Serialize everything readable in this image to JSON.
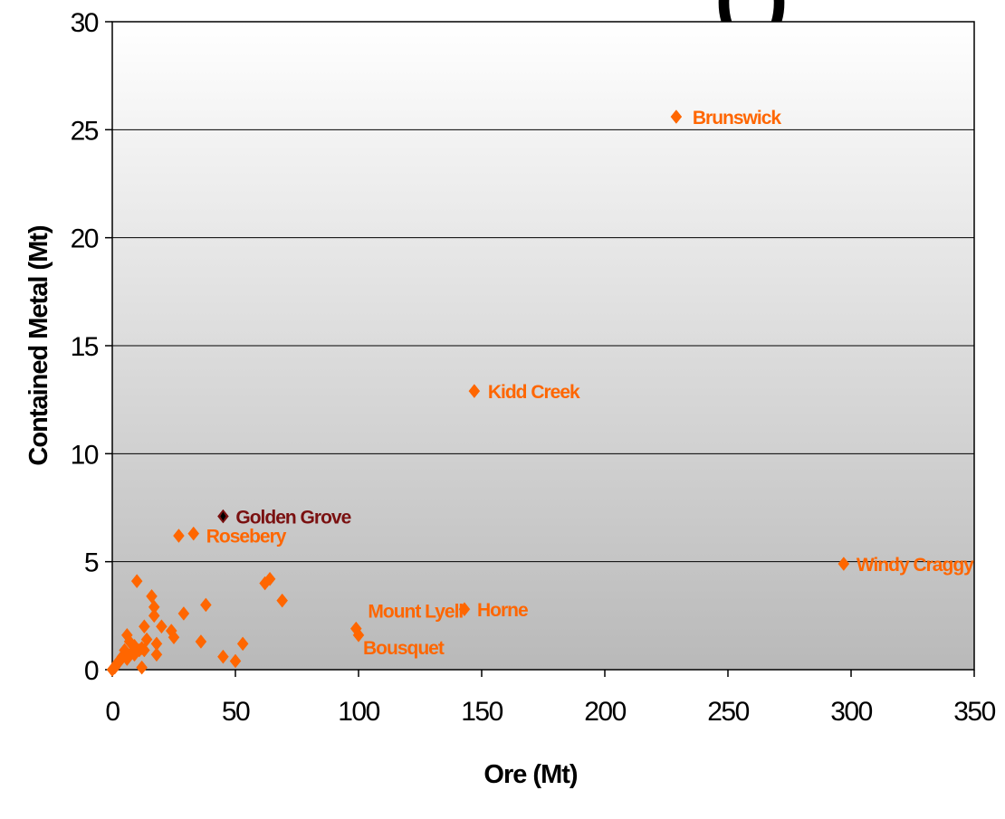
{
  "chart_data": {
    "type": "scatter",
    "title_fragment": "(    )",
    "xlabel": "Ore (Mt)",
    "ylabel": "Contained Metal (Mt)",
    "xlim": [
      0,
      350
    ],
    "ylim": [
      0,
      30
    ],
    "x_ticks": [
      0,
      50,
      100,
      150,
      200,
      250,
      300,
      350
    ],
    "y_ticks": [
      0,
      5,
      10,
      15,
      20,
      25,
      30
    ],
    "grid": "horizontal",
    "background": "vertical gradient, white at top to grey at bottom",
    "marker": "diamond",
    "colors": {
      "points": "#ff6600",
      "highlight": "#7a1010",
      "labels": "#ff6600"
    },
    "labeled_points": [
      {
        "name": "Brunswick",
        "x": 229,
        "y": 25.6
      },
      {
        "name": "Kidd Creek",
        "x": 147,
        "y": 12.9
      },
      {
        "name": "Golden Grove",
        "x": 45,
        "y": 7.1,
        "highlight": true
      },
      {
        "name": "Rosebery",
        "x": 33,
        "y": 6.3
      },
      {
        "name": "Windy Craggy",
        "x": 297,
        "y": 4.9
      },
      {
        "name": "Mount Lyell",
        "x": 99,
        "y": 1.9
      },
      {
        "name": "Horne",
        "x": 143,
        "y": 2.8
      },
      {
        "name": "Bousquet",
        "x": 100,
        "y": 1.6
      }
    ],
    "points": [
      {
        "x": 27,
        "y": 6.2
      },
      {
        "x": 10,
        "y": 4.1
      },
      {
        "x": 16,
        "y": 3.4
      },
      {
        "x": 17,
        "y": 2.9
      },
      {
        "x": 17,
        "y": 2.5
      },
      {
        "x": 29,
        "y": 2.6
      },
      {
        "x": 38,
        "y": 3.0
      },
      {
        "x": 62,
        "y": 4.0
      },
      {
        "x": 64,
        "y": 4.2
      },
      {
        "x": 69,
        "y": 3.2
      },
      {
        "x": 20,
        "y": 2.0
      },
      {
        "x": 13,
        "y": 2.0
      },
      {
        "x": 24,
        "y": 1.8
      },
      {
        "x": 25,
        "y": 1.5
      },
      {
        "x": 36,
        "y": 1.3
      },
      {
        "x": 18,
        "y": 1.2
      },
      {
        "x": 53,
        "y": 1.2
      },
      {
        "x": 45,
        "y": 0.6
      },
      {
        "x": 50,
        "y": 0.4
      },
      {
        "x": 18,
        "y": 0.7
      },
      {
        "x": 6,
        "y": 1.6
      },
      {
        "x": 7,
        "y": 1.3
      },
      {
        "x": 9,
        "y": 1.1
      },
      {
        "x": 11,
        "y": 0.9
      },
      {
        "x": 14,
        "y": 1.4
      },
      {
        "x": 12,
        "y": 1.0
      },
      {
        "x": 8,
        "y": 0.8
      },
      {
        "x": 5,
        "y": 0.9
      },
      {
        "x": 4,
        "y": 0.6
      },
      {
        "x": 3,
        "y": 0.4
      },
      {
        "x": 2,
        "y": 0.3
      },
      {
        "x": 6,
        "y": 0.5
      },
      {
        "x": 9,
        "y": 0.7
      },
      {
        "x": 12,
        "y": 0.1
      },
      {
        "x": 0,
        "y": 0.0
      },
      {
        "x": 1,
        "y": 0.1
      },
      {
        "x": 13,
        "y": 0.9
      }
    ]
  }
}
